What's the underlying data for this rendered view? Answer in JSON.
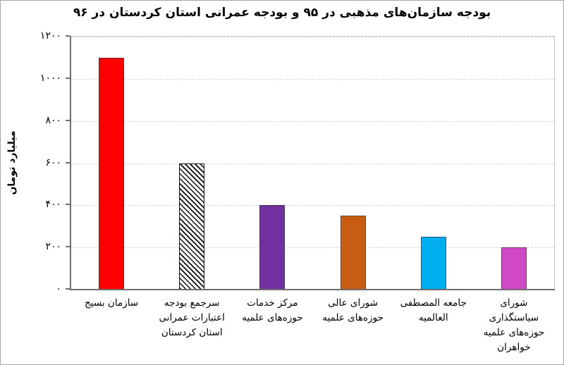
{
  "chart_data": {
    "type": "bar",
    "title": "بودجه سازمان‌های مذهبی در ۹۵ و بودجه عمرانی استان کردستان در ۹۶",
    "ylabel": "میلیارد تومان",
    "xlabel": "",
    "ylim": [
      0,
      1200
    ],
    "ytick_step": 200,
    "grid": true,
    "legend": false,
    "yticks": [
      {
        "value": 0,
        "label": "۰"
      },
      {
        "value": 200,
        "label": "۲۰۰"
      },
      {
        "value": 400,
        "label": "۴۰۰"
      },
      {
        "value": 600,
        "label": "۶۰۰"
      },
      {
        "value": 800,
        "label": "۸۰۰"
      },
      {
        "value": 1000,
        "label": "۱۰۰۰"
      },
      {
        "value": 1200,
        "label": "۱۲۰۰"
      }
    ],
    "categories": [
      "سازمان بسیج",
      "سرجمع بودجه اعتبارات عمرانی استان کردستان",
      "مرکز خدمات حوزه‌های علمیه",
      "شورای عالی حوزه‌های علمیه",
      "جامعه المصطفی العالمیه",
      "شورای سیاستگذاری حوزه‌های علمیه خواهران"
    ],
    "values": [
      1100,
      600,
      400,
      350,
      250,
      200
    ],
    "bars": [
      {
        "label_lines": [
          "سازمان بسیج"
        ],
        "value": 1100,
        "fill": "#ff0000",
        "pattern": "solid"
      },
      {
        "label_lines": [
          "سرجمع بودجه",
          "اعتبارات عمرانی",
          "استان کردستان"
        ],
        "value": 600,
        "fill": "hatch",
        "pattern": "diagonal-hatch",
        "hatch_fg": "#000000",
        "hatch_bg": "#ffffff"
      },
      {
        "label_lines": [
          "مرکز خدمات",
          "حوزه‌های علمیه"
        ],
        "value": 400,
        "fill": "#7030a0",
        "pattern": "solid"
      },
      {
        "label_lines": [
          "شورای عالی",
          "حوزه‌های علمیه"
        ],
        "value": 350,
        "fill": "#c85c12",
        "pattern": "solid"
      },
      {
        "label_lines": [
          "جامعه المصطفی",
          "العالمیه"
        ],
        "value": 250,
        "fill": "#00aeef",
        "pattern": "solid"
      },
      {
        "label_lines": [
          "شورای",
          "سیاستگذاری",
          "حوزه‌های علمیه",
          "خواهران"
        ],
        "value": 200,
        "fill": "#d148c4",
        "pattern": "solid"
      }
    ],
    "colors": {
      "axis": "#6e6e6e",
      "gridline": "#d5d5d5",
      "plot_border": "#c9c9c9",
      "text": "#000000",
      "background": "#ffffff"
    }
  }
}
